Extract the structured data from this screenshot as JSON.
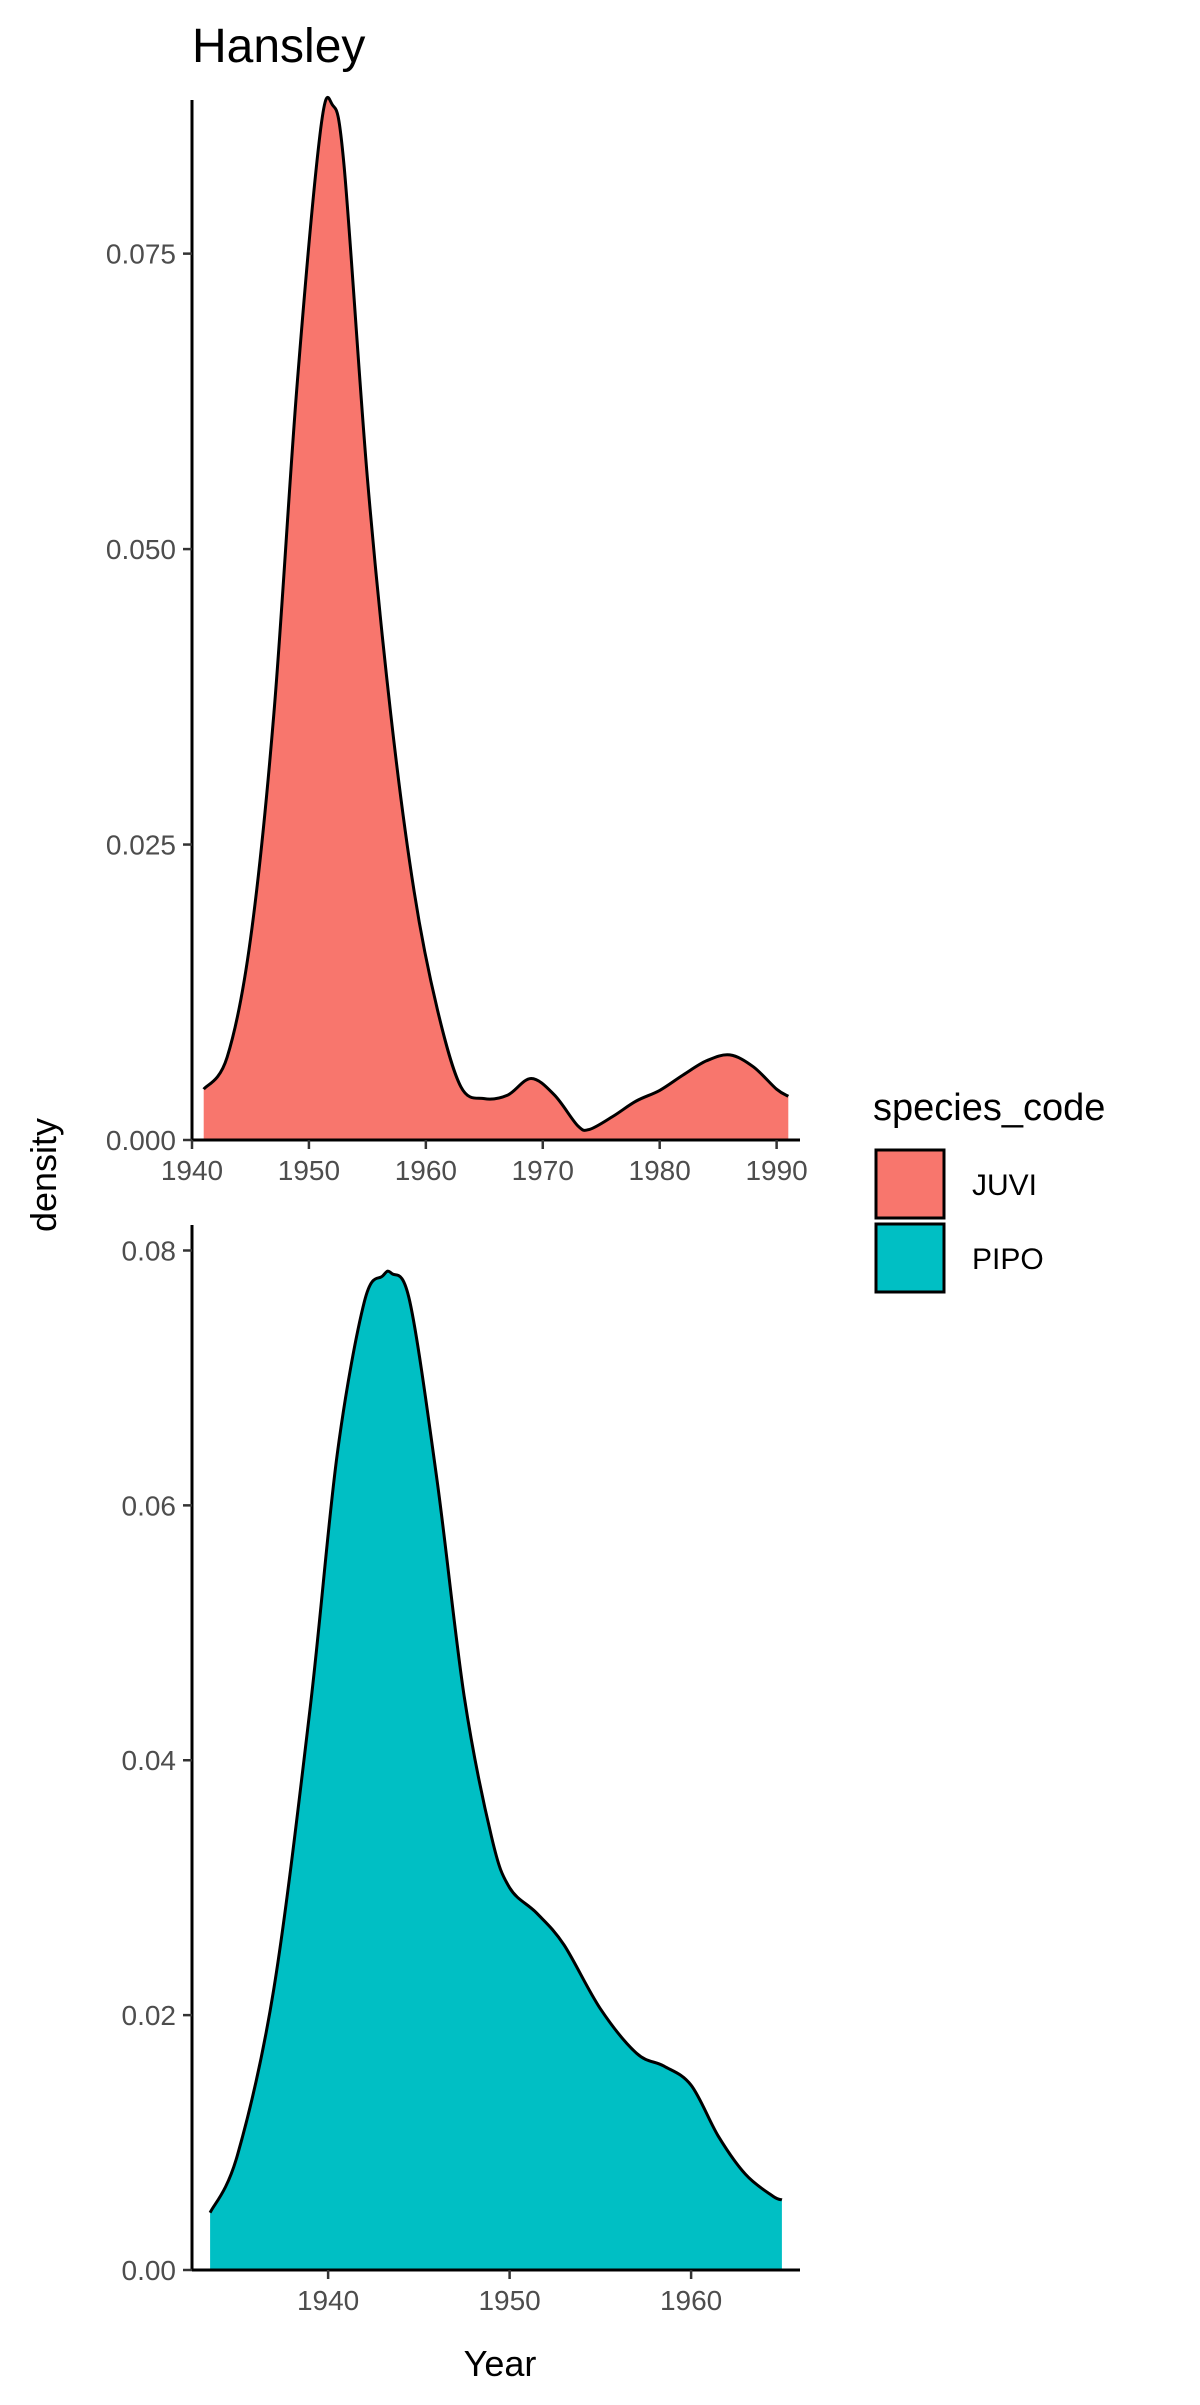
{
  "title": "Hansley",
  "xlabel": "Year",
  "ylabel": "density",
  "legend": {
    "title": "species_code",
    "placement": "right",
    "entries": [
      {
        "label": "JUVI",
        "color": "#F8766D"
      },
      {
        "label": "PIPO",
        "color": "#00BFC4"
      }
    ]
  },
  "chart_data": [
    {
      "type": "area",
      "series": [
        {
          "name": "JUVI",
          "color": "#F8766D",
          "x": [
            1941,
            1943,
            1945,
            1947,
            1949,
            1951,
            1952,
            1953,
            1955,
            1957,
            1959,
            1961,
            1963,
            1965,
            1967,
            1969,
            1971,
            1973,
            1974,
            1976,
            1978,
            1980,
            1982,
            1984,
            1986,
            1988,
            1990,
            1991
          ],
          "y": [
            0.0043,
            0.007,
            0.017,
            0.036,
            0.064,
            0.0855,
            0.0876,
            0.0825,
            0.056,
            0.036,
            0.021,
            0.011,
            0.0045,
            0.0035,
            0.0038,
            0.0052,
            0.0038,
            0.0012,
            0.0009,
            0.002,
            0.0033,
            0.0042,
            0.0055,
            0.0067,
            0.0072,
            0.0062,
            0.0043,
            0.0037
          ]
        }
      ],
      "xlim": [
        1940,
        1992
      ],
      "ylim": [
        0,
        0.088
      ],
      "xticks": [
        1940,
        1950,
        1960,
        1970,
        1980,
        1990
      ],
      "xtick_labels": [
        "1940",
        "1950",
        "1960",
        "1970",
        "1980",
        "1990"
      ],
      "yticks": [
        0,
        0.025,
        0.05,
        0.075
      ],
      "ytick_labels": [
        "0.000",
        "0.025",
        "0.050",
        "0.075"
      ],
      "grid": false
    },
    {
      "type": "area",
      "series": [
        {
          "name": "PIPO",
          "color": "#00BFC4",
          "x": [
            1933.5,
            1935,
            1937,
            1939,
            1940.5,
            1942,
            1943,
            1943.5,
            1944.5,
            1946,
            1947.5,
            1949,
            1950,
            1951.5,
            1953,
            1955,
            1957,
            1958.5,
            1960,
            1961.5,
            1963,
            1964.5,
            1965
          ],
          "y": [
            0.0045,
            0.009,
            0.022,
            0.044,
            0.064,
            0.076,
            0.078,
            0.0782,
            0.076,
            0.062,
            0.045,
            0.034,
            0.03,
            0.028,
            0.0255,
            0.0205,
            0.017,
            0.016,
            0.0145,
            0.0105,
            0.0075,
            0.0058,
            0.0055
          ]
        }
      ],
      "xlim": [
        1932.5,
        1966
      ],
      "ylim": [
        0,
        0.082
      ],
      "xticks": [
        1940,
        1950,
        1960
      ],
      "xtick_labels": [
        "1940",
        "1950",
        "1960"
      ],
      "yticks": [
        0,
        0.02,
        0.04,
        0.06,
        0.08
      ],
      "ytick_labels": [
        "0.00",
        "0.02",
        "0.04",
        "0.06",
        "0.08"
      ],
      "grid": false
    }
  ]
}
